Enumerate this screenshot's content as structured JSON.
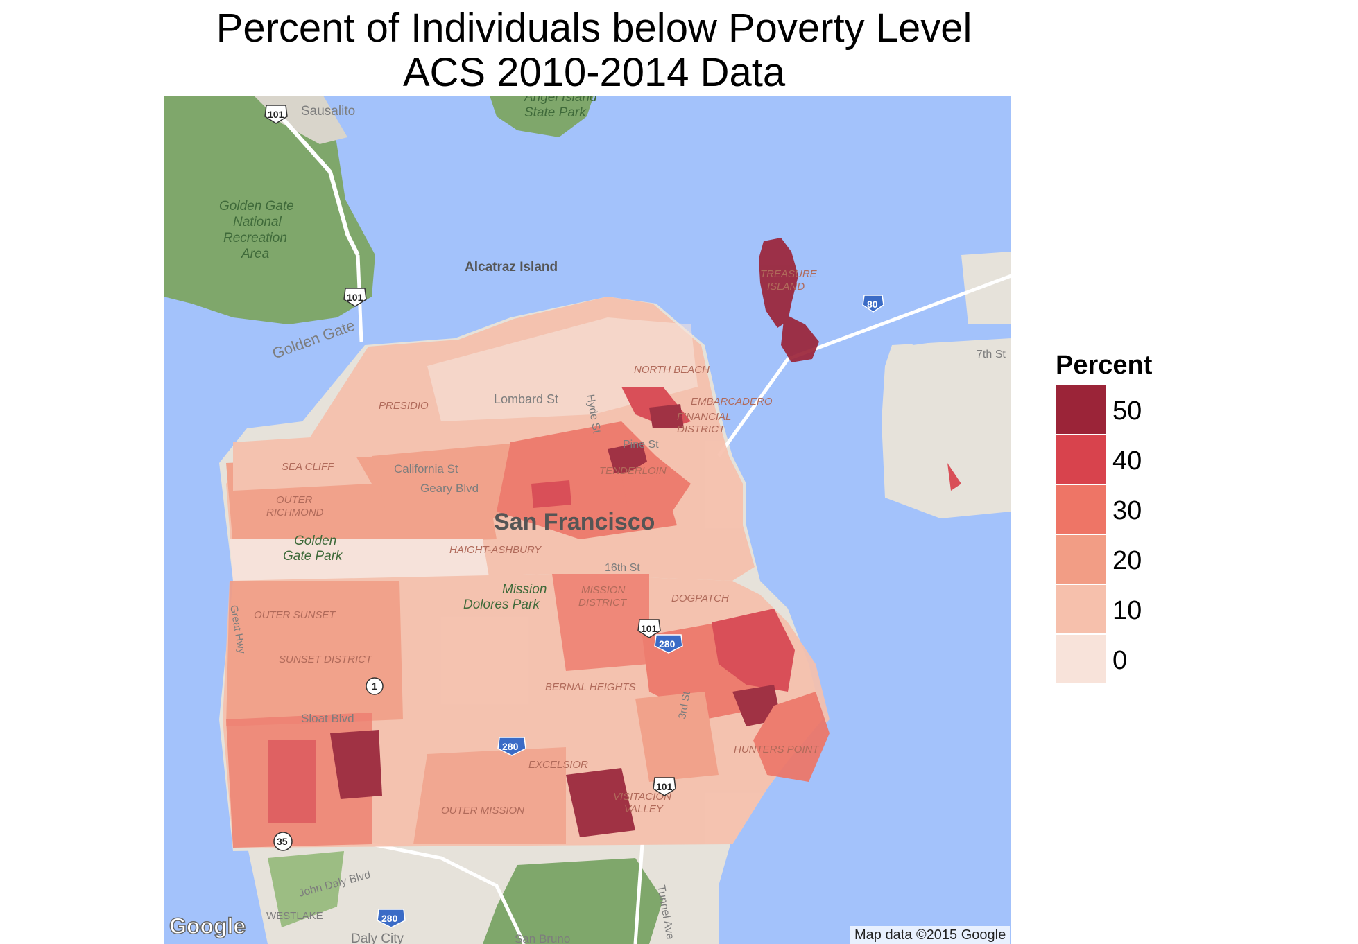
{
  "title": {
    "line1": "Percent of Individuals below Poverty Level",
    "line2": "ACS 2010-2014 Data"
  },
  "legend": {
    "title": "Percent",
    "items": [
      {
        "label": "50",
        "color": "#9b2438"
      },
      {
        "label": "40",
        "color": "#d8434d"
      },
      {
        "label": "30",
        "color": "#ee7566"
      },
      {
        "label": "20",
        "color": "#f29d85"
      },
      {
        "label": "10",
        "color": "#f6c0ac"
      },
      {
        "label": "0",
        "color": "#f8e3da"
      }
    ]
  },
  "colors": {
    "water": "#a3c2fb",
    "land_park": "#7fa76b",
    "land_urban": "#e6e2da",
    "road": "#ffffff"
  },
  "map_labels": {
    "sausalito": "Sausalito",
    "angel_island": "Angel Island State Park",
    "angel_island_l1": "Angel Island",
    "angel_island_l2": "State Park",
    "ggnra_l1": "Golden Gate",
    "ggnra_l2": "National",
    "ggnra_l3": "Recreation",
    "ggnra_l4": "Area",
    "alcatraz": "Alcatraz Island",
    "golden_gate": "Golden Gate",
    "treasure_island_l1": "TREASURE",
    "treasure_island_l2": "ISLAND",
    "seventh_st": "7th St",
    "north_beach": "NORTH BEACH",
    "embarcadero": "EMBARCADERO",
    "financial_l1": "FINANCIAL",
    "financial_l2": "DISTRICT",
    "presidio": "PRESIDIO",
    "lombard": "Lombard St",
    "hyde": "Hyde St",
    "pine": "Pine St",
    "tenderloin": "TENDERLOIN",
    "sea_cliff": "SEA CLIFF",
    "california": "California St",
    "geary": "Geary Blvd",
    "outer_richmond_l1": "OUTER",
    "outer_richmond_l2": "RICHMOND",
    "san_francisco": "San Francisco",
    "gg_park_l1": "Golden",
    "gg_park_l2": "Gate Park",
    "haight": "HAIGHT-ASHBURY",
    "sixteenth": "16th St",
    "mission_dolores_l1": "Mission",
    "mission_dolores_l2": "Dolores Park",
    "mission_district_l1": "MISSION",
    "mission_district_l2": "DISTRICT",
    "dogpatch": "DOGPATCH",
    "great_hwy": "Great Hwy",
    "outer_sunset": "OUTER SUNSET",
    "sunset_district": "SUNSET DISTRICT",
    "bernal": "BERNAL HEIGHTS",
    "third_st": "3rd St",
    "sloat": "Sloat Blvd",
    "hunters_point": "HUNTERS POINT",
    "excelsior": "EXCELSIOR",
    "visitacion_l1": "VISITACION",
    "visitacion_l2": "VALLEY",
    "outer_mission": "OUTER MISSION",
    "john_daly": "John Daly Blvd",
    "westlake": "WESTLAKE",
    "tunnel_ave": "Tunnel Ave",
    "daly_city": "Daly City",
    "san_bruno": "San Bruno"
  },
  "shields": {
    "us101": "101",
    "i80": "80",
    "i280": "280",
    "ca1": "1",
    "ca35": "35"
  },
  "google_logo": "Google",
  "attribution": "Map data ©2015 Google"
}
